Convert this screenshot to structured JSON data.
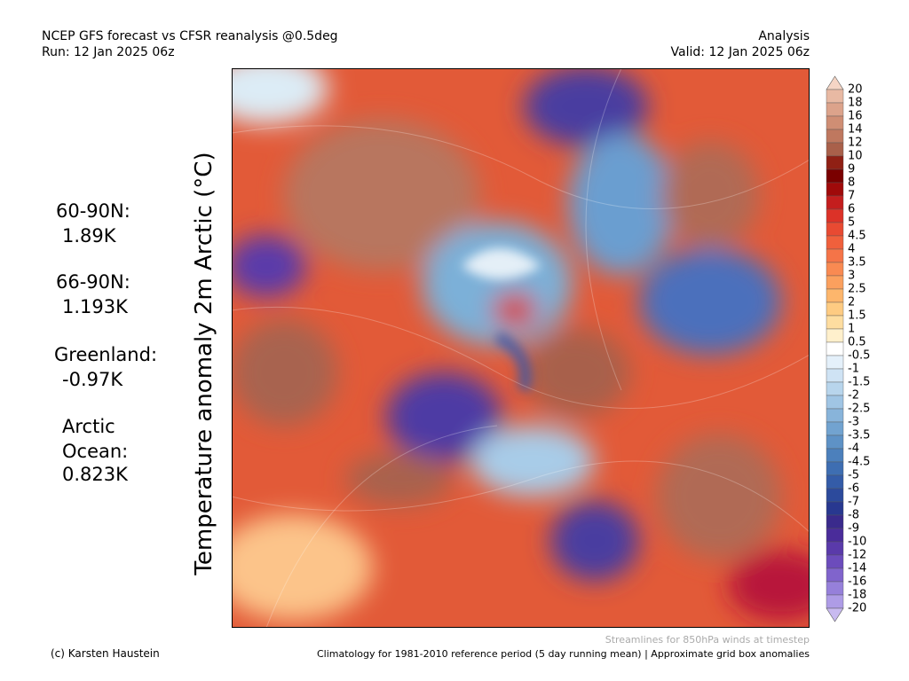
{
  "header": {
    "left": [
      "NCEP GFS forecast vs CFSR reanalysis @0.5deg",
      "Run: 12 Jan 2025 06z"
    ],
    "right": [
      "Analysis",
      "Valid: 12 Jan 2025 06z"
    ]
  },
  "title": "Temperature anomaly 2m Arctic (°C)",
  "stats": [
    [
      "60-90N:",
      "1.89K"
    ],
    [
      "66-90N:",
      "1.193K"
    ],
    [
      "Greenland:",
      "-0.97K"
    ],
    [
      "Arctic",
      "Ocean:",
      "0.823K"
    ]
  ],
  "colorbar": {
    "labels": [
      "20",
      "18",
      "16",
      "14",
      "12",
      "10",
      "9",
      "8",
      "7",
      "6",
      "5",
      "4.5",
      "4",
      "3.5",
      "3",
      "2.5",
      "2",
      "1.5",
      "1",
      "0.5",
      "-0.5",
      "-1",
      "-1.5",
      "-2",
      "-2.5",
      "-3",
      "-3.5",
      "-4",
      "-4.5",
      "-5",
      "-6",
      "-7",
      "-8",
      "-9",
      "-10",
      "-12",
      "-14",
      "-16",
      "-18",
      "-20"
    ],
    "colors": [
      "#f5d5c5",
      "#e8b9a3",
      "#dca38b",
      "#cf8e74",
      "#bf785f",
      "#a9604a",
      "#902014",
      "#7a0000",
      "#a00a0a",
      "#c41e1e",
      "#dc3228",
      "#e84a32",
      "#f0603c",
      "#f57448",
      "#f98a52",
      "#fba05e",
      "#fdb66c",
      "#fecb82",
      "#fedda0",
      "#fff0cc",
      "#ffffff",
      "#e4f0fa",
      "#cfe3f4",
      "#b8d5ec",
      "#a0c5e4",
      "#88b4da",
      "#72a3d0",
      "#5e92c6",
      "#4c80bc",
      "#3e6eb2",
      "#345ca8",
      "#2c4a9c",
      "#283890",
      "#3a2a8c",
      "#4a2c9a",
      "#5a3aaa",
      "#6c4cbc",
      "#8064cc",
      "#9680da",
      "#ae9ce6",
      "#c8baf0"
    ]
  },
  "footer": {
    "note": "Streamlines for 850hPa winds at timestep",
    "credit": "(c) Karsten Haustein",
    "climatology": "Climatology for 1981-2010 reference period (5 day running mean) | Approximate grid box anomalies"
  }
}
